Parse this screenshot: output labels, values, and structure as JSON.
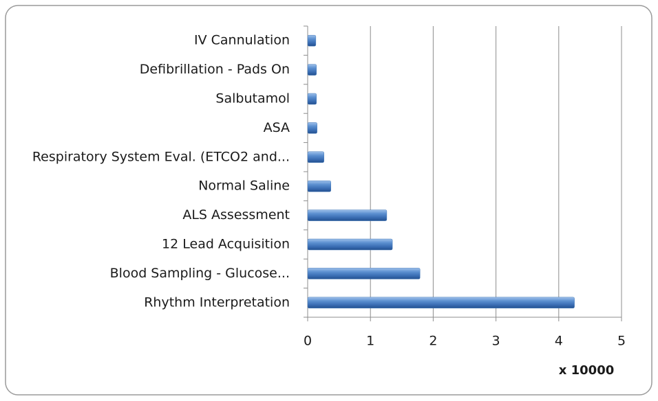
{
  "chart_data": {
    "type": "barh",
    "categories": [
      "Rhythm Interpretation",
      "Blood Sampling - Glucose...",
      "12 Lead Acquisition",
      "ALS Assessment",
      "Normal Saline",
      "Respiratory System Eval. (ETCO2 and...",
      "ASA",
      "Salbutamol",
      "Defibrillation - Pads On",
      "IV Cannulation"
    ],
    "values": [
      4.25,
      1.79,
      1.35,
      1.26,
      0.37,
      0.26,
      0.15,
      0.14,
      0.14,
      0.13
    ],
    "color": "#4a7ebb",
    "xlim": [
      0,
      5
    ],
    "xticks": [
      0,
      1,
      2,
      3,
      4,
      5
    ],
    "x_axis_label": "x 10000",
    "grid": true
  }
}
